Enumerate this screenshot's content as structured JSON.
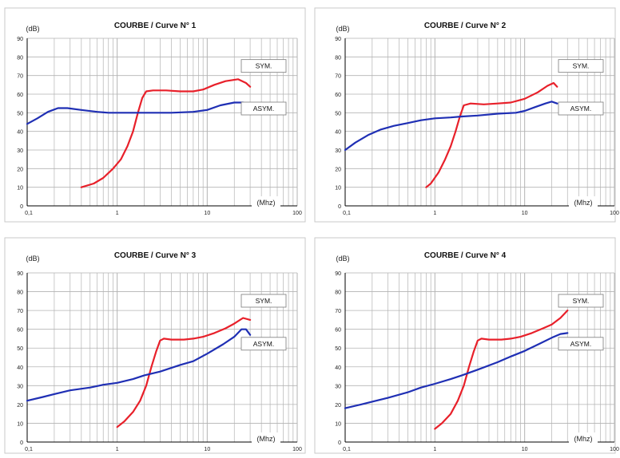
{
  "colors": {
    "sym": "#e8202a",
    "asym": "#1f2fb4",
    "grid": "#b3b3b3",
    "frame": "#c8c8c8"
  },
  "chart_data": [
    {
      "type": "line",
      "title": "COURBE / Curve N° 1",
      "ylabel": "(dB)",
      "xlabel": "(Mhz)",
      "x_scale": "log",
      "xlim": [
        0.1,
        100
      ],
      "ylim": [
        0,
        90
      ],
      "x_ticks": [
        "0,1",
        "1",
        "10",
        "100"
      ],
      "y_ticks": [
        "0",
        "10",
        "20",
        "30",
        "40",
        "50",
        "60",
        "70",
        "80",
        "90"
      ],
      "grid": true,
      "series": [
        {
          "name": "SYM.",
          "color": "#e8202a",
          "points": [
            [
              0.4,
              10
            ],
            [
              0.55,
              12
            ],
            [
              0.7,
              15
            ],
            [
              0.9,
              20
            ],
            [
              1.1,
              25
            ],
            [
              1.3,
              32
            ],
            [
              1.5,
              40
            ],
            [
              1.7,
              50
            ],
            [
              1.9,
              58
            ],
            [
              2.1,
              61.5
            ],
            [
              2.5,
              62
            ],
            [
              3.5,
              62
            ],
            [
              5,
              61.5
            ],
            [
              7,
              61.5
            ],
            [
              9,
              62.5
            ],
            [
              12,
              65
            ],
            [
              16,
              67
            ],
            [
              22,
              68
            ],
            [
              27,
              66
            ],
            [
              30,
              64
            ]
          ]
        },
        {
          "name": "ASYM.",
          "color": "#1f2fb4",
          "points": [
            [
              0.1,
              44
            ],
            [
              0.13,
              47
            ],
            [
              0.17,
              50.5
            ],
            [
              0.22,
              52.5
            ],
            [
              0.28,
              52.5
            ],
            [
              0.4,
              51.5
            ],
            [
              0.6,
              50.5
            ],
            [
              0.8,
              50
            ],
            [
              1.2,
              50
            ],
            [
              2,
              50
            ],
            [
              4,
              50
            ],
            [
              7,
              50.5
            ],
            [
              10,
              51.5
            ],
            [
              14,
              54
            ],
            [
              20,
              55.5
            ],
            [
              25,
              55.5
            ],
            [
              30,
              54
            ]
          ]
        }
      ]
    },
    {
      "type": "line",
      "title": "COURBE / Curve N° 2",
      "ylabel": "(dB)",
      "xlabel": "(Mhz)",
      "x_scale": "log",
      "xlim": [
        0.1,
        100
      ],
      "ylim": [
        0,
        90
      ],
      "x_ticks": [
        "0,1",
        "1",
        "10",
        "100"
      ],
      "y_ticks": [
        "0",
        "10",
        "20",
        "30",
        "40",
        "50",
        "60",
        "70",
        "80",
        "90"
      ],
      "grid": true,
      "series": [
        {
          "name": "SYM.",
          "color": "#e8202a",
          "points": [
            [
              0.8,
              10
            ],
            [
              0.9,
              12
            ],
            [
              1.1,
              18
            ],
            [
              1.3,
              25
            ],
            [
              1.5,
              32
            ],
            [
              1.7,
              40
            ],
            [
              1.9,
              48
            ],
            [
              2.1,
              54
            ],
            [
              2.5,
              55
            ],
            [
              3.5,
              54.5
            ],
            [
              5,
              55
            ],
            [
              7,
              55.5
            ],
            [
              10,
              57.5
            ],
            [
              14,
              61
            ],
            [
              18,
              64.5
            ],
            [
              21,
              66
            ],
            [
              23,
              64
            ]
          ]
        },
        {
          "name": "ASYM.",
          "color": "#1f2fb4",
          "points": [
            [
              0.1,
              30
            ],
            [
              0.13,
              34
            ],
            [
              0.18,
              38
            ],
            [
              0.25,
              41
            ],
            [
              0.35,
              43
            ],
            [
              0.5,
              44.5
            ],
            [
              0.7,
              46
            ],
            [
              1,
              47
            ],
            [
              1.5,
              47.5
            ],
            [
              2,
              48
            ],
            [
              3,
              48.5
            ],
            [
              5,
              49.5
            ],
            [
              8,
              50
            ],
            [
              10,
              51
            ],
            [
              13,
              53
            ],
            [
              17,
              55
            ],
            [
              20,
              56
            ],
            [
              23,
              55
            ]
          ]
        }
      ]
    },
    {
      "type": "line",
      "title": "COURBE / Curve N° 3",
      "ylabel": "(dB)",
      "xlabel": "(Mhz)",
      "x_scale": "log",
      "xlim": [
        0.1,
        100
      ],
      "ylim": [
        0,
        90
      ],
      "x_ticks": [
        "0,1",
        "1",
        "10",
        "100"
      ],
      "y_ticks": [
        "0",
        "10",
        "20",
        "30",
        "40",
        "50",
        "60",
        "70",
        "80",
        "90"
      ],
      "grid": true,
      "series": [
        {
          "name": "SYM.",
          "color": "#e8202a",
          "points": [
            [
              1,
              8
            ],
            [
              1.2,
              11
            ],
            [
              1.5,
              16
            ],
            [
              1.8,
              22
            ],
            [
              2.1,
              30
            ],
            [
              2.4,
              40
            ],
            [
              2.7,
              48
            ],
            [
              3,
              54
            ],
            [
              3.3,
              55
            ],
            [
              4,
              54.5
            ],
            [
              5.5,
              54.5
            ],
            [
              7,
              55
            ],
            [
              9,
              56
            ],
            [
              12,
              58
            ],
            [
              16,
              60.5
            ],
            [
              20,
              63
            ],
            [
              25,
              66
            ],
            [
              30,
              65
            ]
          ]
        },
        {
          "name": "ASYM.",
          "color": "#1f2fb4",
          "points": [
            [
              0.1,
              22
            ],
            [
              0.15,
              24
            ],
            [
              0.2,
              25.5
            ],
            [
              0.3,
              27.5
            ],
            [
              0.5,
              29
            ],
            [
              0.7,
              30.5
            ],
            [
              1,
              31.5
            ],
            [
              1.5,
              33.5
            ],
            [
              2,
              35.5
            ],
            [
              3,
              37.5
            ],
            [
              5,
              41
            ],
            [
              7,
              43
            ],
            [
              10,
              47
            ],
            [
              15,
              52
            ],
            [
              20,
              56
            ],
            [
              24,
              60
            ],
            [
              27,
              60
            ],
            [
              30,
              57
            ]
          ]
        }
      ]
    },
    {
      "type": "line",
      "title": "COURBE / Curve N° 4",
      "ylabel": "(dB)",
      "xlabel": "(Mhz)",
      "x_scale": "log",
      "xlim": [
        0.1,
        100
      ],
      "ylim": [
        0,
        90
      ],
      "x_ticks": [
        "0,1",
        "1",
        "10",
        "100"
      ],
      "y_ticks": [
        "0",
        "10",
        "20",
        "30",
        "40",
        "50",
        "60",
        "70",
        "80",
        "90"
      ],
      "grid": true,
      "series": [
        {
          "name": "SYM.",
          "color": "#e8202a",
          "points": [
            [
              1,
              7
            ],
            [
              1.2,
              10
            ],
            [
              1.5,
              15
            ],
            [
              1.8,
              22
            ],
            [
              2.1,
              30
            ],
            [
              2.4,
              40
            ],
            [
              2.7,
              48
            ],
            [
              3,
              54
            ],
            [
              3.3,
              55
            ],
            [
              4,
              54.5
            ],
            [
              5.5,
              54.5
            ],
            [
              7,
              55
            ],
            [
              9,
              56
            ],
            [
              12,
              58
            ],
            [
              16,
              60.5
            ],
            [
              20,
              62.5
            ],
            [
              25,
              66
            ],
            [
              30,
              70
            ]
          ]
        },
        {
          "name": "ASYM.",
          "color": "#1f2fb4",
          "points": [
            [
              0.1,
              18
            ],
            [
              0.15,
              20
            ],
            [
              0.2,
              21.5
            ],
            [
              0.3,
              23.5
            ],
            [
              0.5,
              26.5
            ],
            [
              0.7,
              29
            ],
            [
              1,
              31
            ],
            [
              1.5,
              33.5
            ],
            [
              2,
              35.5
            ],
            [
              3,
              38.5
            ],
            [
              5,
              42.5
            ],
            [
              7,
              45.5
            ],
            [
              10,
              48.5
            ],
            [
              15,
              52.5
            ],
            [
              20,
              55.5
            ],
            [
              25,
              57.5
            ],
            [
              30,
              58
            ]
          ]
        }
      ]
    }
  ]
}
